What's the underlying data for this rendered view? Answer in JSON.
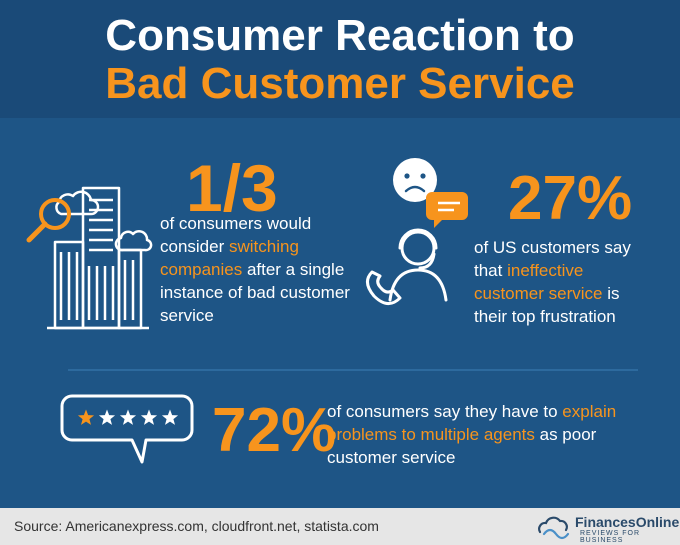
{
  "title": {
    "line1": "Consumer Reaction to",
    "line2": "Bad Customer Service"
  },
  "stat1": {
    "value": "1/3",
    "text_before": "of consumers would consider ",
    "highlight": "switching companies",
    "text_after": " after a single instance of bad customer service"
  },
  "stat2": {
    "value": "27%",
    "text_before": "of US customers say that ",
    "highlight": "ineffective customer service",
    "text_after": " is their top frustration"
  },
  "stat3": {
    "value": "72%",
    "text_before": "of consumers say they have to ",
    "highlight": "explain problems to multiple agents",
    "text_after": " as poor customer service"
  },
  "rating": {
    "filled_stars": 1,
    "total_stars": 5
  },
  "footer": {
    "source": "Source: Americanexpress.com, cloudfront.net, statista.com",
    "brand": "FinancesOnline",
    "tagline": "REVIEWS FOR BUSINESS"
  },
  "colors": {
    "background": "#1e5586",
    "header": "#1a4a78",
    "accent": "#f7941d",
    "text": "#ffffff",
    "footer": "#e6e6e6"
  },
  "icons": {
    "stat1": "buildings-magnifier-icon",
    "stat2": "sad-face-headset-phone-icon",
    "stat3": "star-rating-bubble-icon",
    "brand": "financesonline-logo-icon"
  }
}
